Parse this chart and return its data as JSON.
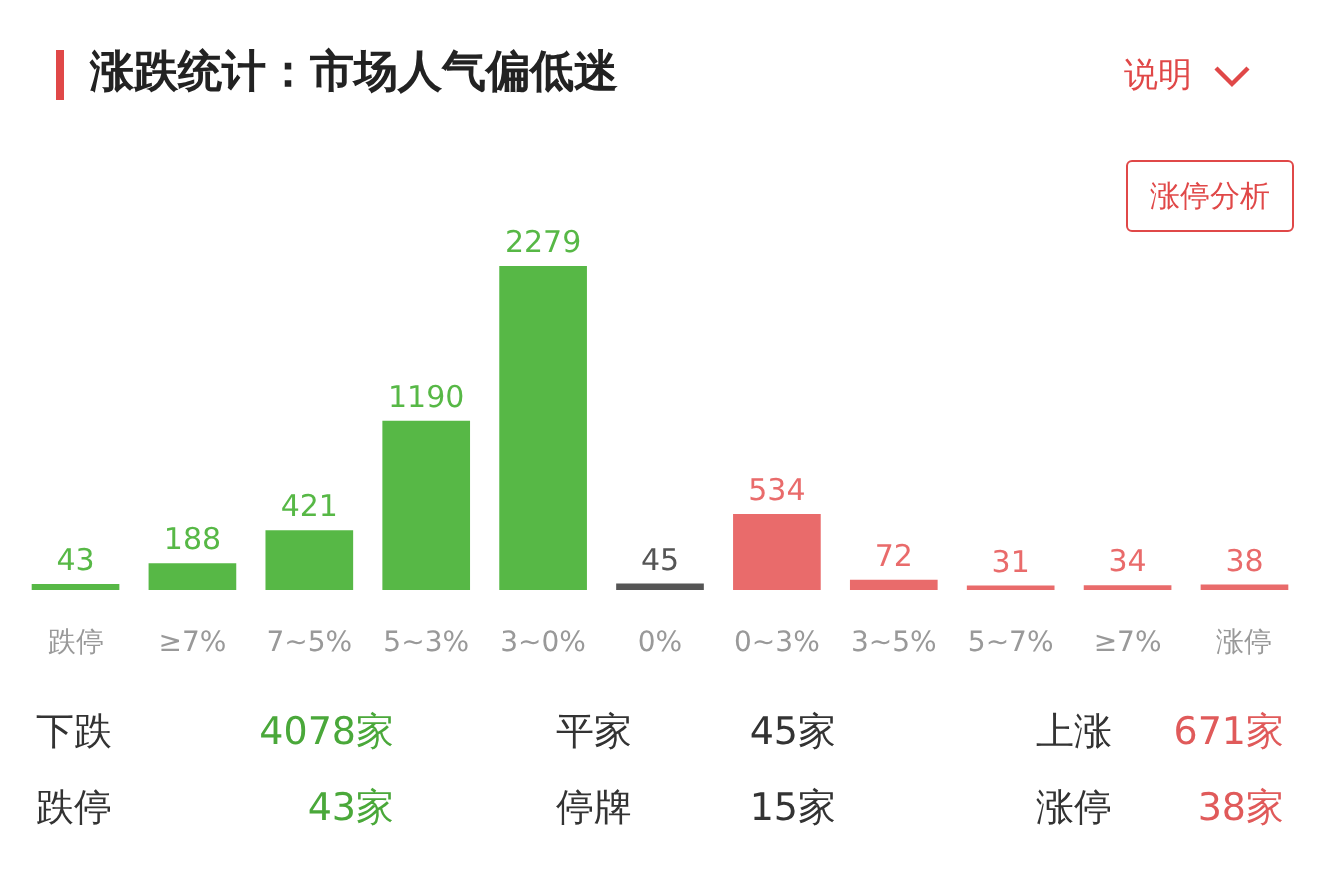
{
  "chart_data": {
    "type": "bar",
    "title": "涨跌统计：市场人气偏低迷",
    "categories": [
      "跌停",
      "≥7%",
      "7~5%",
      "5~3%",
      "3~0%",
      "0%",
      "0~3%",
      "3~5%",
      "5~7%",
      "≥7%",
      "涨停"
    ],
    "values": [
      43,
      188,
      421,
      1190,
      2279,
      45,
      534,
      72,
      31,
      34,
      38
    ],
    "colors": [
      "#57b846",
      "#57b846",
      "#57b846",
      "#57b846",
      "#57b846",
      "#555555",
      "#e96b6b",
      "#e96b6b",
      "#e96b6b",
      "#e96b6b",
      "#e96b6b"
    ],
    "data_labels": true,
    "annotations": [
      "说明",
      "涨停分析",
      "下跌",
      "4078家",
      "平家",
      "45家",
      "上涨",
      "671家",
      "跌停",
      "43家",
      "停牌",
      "15家",
      "涨停",
      "38家"
    ]
  }
}
